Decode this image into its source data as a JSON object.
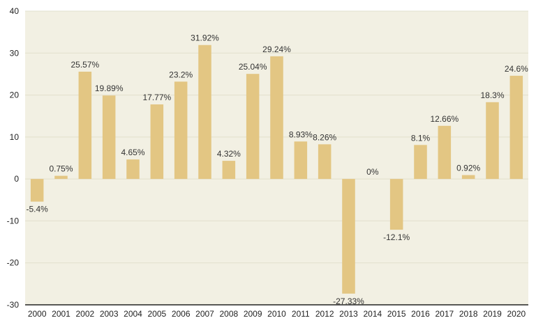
{
  "chart_data": {
    "type": "bar",
    "categories": [
      "2000",
      "2001",
      "2002",
      "2003",
      "2004",
      "2005",
      "2006",
      "2007",
      "2008",
      "2009",
      "2010",
      "2011",
      "2012",
      "2013",
      "2014",
      "2015",
      "2016",
      "2017",
      "2018",
      "2019",
      "2020"
    ],
    "values": [
      -5.4,
      0.75,
      25.57,
      19.89,
      4.65,
      17.77,
      23.2,
      31.92,
      4.32,
      25.04,
      29.24,
      8.93,
      8.26,
      -27.33,
      0,
      -12.1,
      8.1,
      12.66,
      0.92,
      18.3,
      24.6
    ],
    "data_labels": [
      "-5.4%",
      "0.75%",
      "25.57%",
      "19.89%",
      "4.65%",
      "17.77%",
      "23.2%",
      "31.92%",
      "4.32%",
      "25.04%",
      "29.24%",
      "8.93%",
      "8.26%",
      "-27.33%",
      "0%",
      "-12.1%",
      "8.1%",
      "12.66%",
      "0.92%",
      "18.3%",
      "24.6%"
    ],
    "yticks": [
      "40",
      "30",
      "20",
      "10",
      "0",
      "-10",
      "-20",
      "-30"
    ],
    "ytick_values": [
      40,
      30,
      20,
      10,
      0,
      -10,
      -20,
      -30
    ],
    "ylim": [
      -30,
      40
    ],
    "title": "",
    "xlabel": "",
    "ylabel": "",
    "grid": true,
    "legend": "none",
    "colors": {
      "bar": "#E3C683",
      "plot_background": "#F2F0E3",
      "gridline": "#E2DFCC",
      "axis": "#222222"
    }
  }
}
